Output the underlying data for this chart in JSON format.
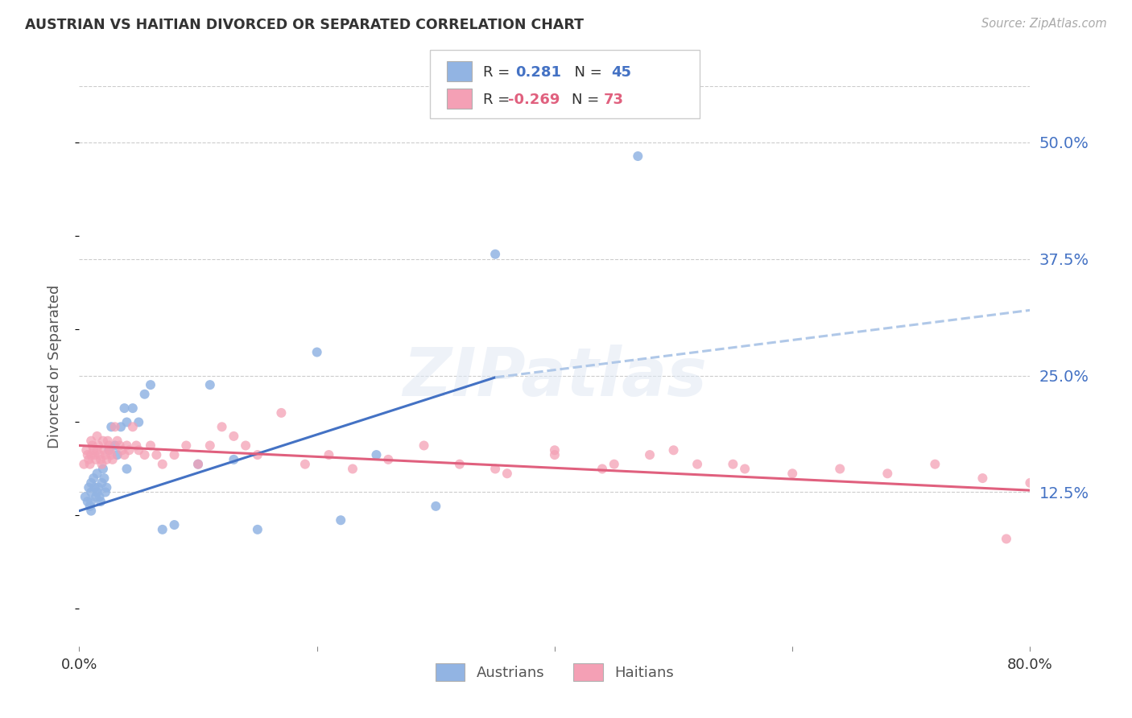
{
  "title": "AUSTRIAN VS HAITIAN DIVORCED OR SEPARATED CORRELATION CHART",
  "source": "Source: ZipAtlas.com",
  "ylabel": "Divorced or Separated",
  "xlim": [
    0.0,
    0.8
  ],
  "ylim": [
    -0.04,
    0.56
  ],
  "yticks": [
    0.125,
    0.25,
    0.375,
    0.5
  ],
  "ytick_labels": [
    "12.5%",
    "25.0%",
    "37.5%",
    "50.0%"
  ],
  "xticks": [
    0.0,
    0.2,
    0.4,
    0.6,
    0.8
  ],
  "legend_R_austrians": "0.281",
  "legend_N_austrians": "45",
  "legend_R_haitians": "-0.269",
  "legend_N_haitians": "73",
  "austrian_color": "#92b4e3",
  "haitian_color": "#f4a0b5",
  "trend_austrian_color": "#4472c4",
  "trend_haitian_color": "#e0607e",
  "trend_extend_color": "#b0c8e8",
  "background_color": "#ffffff",
  "watermark": "ZIPatlas",
  "title_color": "#333333",
  "source_color": "#aaaaaa",
  "axis_label_color": "#555555",
  "tick_color_right": "#4472c4",
  "tick_color_bottom": "#333333",
  "grid_color": "#cccccc",
  "legend_border_color": "#cccccc",
  "aus_x": [
    0.005,
    0.007,
    0.008,
    0.009,
    0.01,
    0.01,
    0.01,
    0.01,
    0.012,
    0.013,
    0.014,
    0.015,
    0.015,
    0.016,
    0.017,
    0.018,
    0.019,
    0.02,
    0.021,
    0.022,
    0.023,
    0.025,
    0.027,
    0.03,
    0.032,
    0.035,
    0.038,
    0.04,
    0.04,
    0.045,
    0.05,
    0.055,
    0.06,
    0.07,
    0.08,
    0.1,
    0.11,
    0.13,
    0.15,
    0.2,
    0.22,
    0.25,
    0.3,
    0.35,
    0.47
  ],
  "aus_y": [
    0.12,
    0.115,
    0.13,
    0.11,
    0.125,
    0.135,
    0.115,
    0.105,
    0.14,
    0.13,
    0.12,
    0.145,
    0.125,
    0.13,
    0.12,
    0.115,
    0.135,
    0.15,
    0.14,
    0.125,
    0.13,
    0.17,
    0.195,
    0.175,
    0.165,
    0.195,
    0.215,
    0.2,
    0.15,
    0.215,
    0.2,
    0.23,
    0.24,
    0.085,
    0.09,
    0.155,
    0.24,
    0.16,
    0.085,
    0.275,
    0.095,
    0.165,
    0.11,
    0.38,
    0.485
  ],
  "hai_x": [
    0.004,
    0.006,
    0.007,
    0.008,
    0.009,
    0.01,
    0.01,
    0.011,
    0.012,
    0.013,
    0.014,
    0.015,
    0.015,
    0.016,
    0.017,
    0.018,
    0.019,
    0.02,
    0.021,
    0.022,
    0.023,
    0.024,
    0.025,
    0.026,
    0.027,
    0.028,
    0.03,
    0.032,
    0.034,
    0.036,
    0.038,
    0.04,
    0.042,
    0.045,
    0.048,
    0.05,
    0.055,
    0.06,
    0.065,
    0.07,
    0.08,
    0.09,
    0.1,
    0.11,
    0.12,
    0.13,
    0.14,
    0.15,
    0.17,
    0.19,
    0.21,
    0.23,
    0.26,
    0.29,
    0.32,
    0.36,
    0.4,
    0.44,
    0.48,
    0.52,
    0.56,
    0.6,
    0.64,
    0.68,
    0.72,
    0.76,
    0.8,
    0.35,
    0.4,
    0.45,
    0.5,
    0.55,
    0.78
  ],
  "hai_y": [
    0.155,
    0.17,
    0.165,
    0.16,
    0.155,
    0.18,
    0.165,
    0.175,
    0.17,
    0.165,
    0.16,
    0.185,
    0.17,
    0.175,
    0.165,
    0.16,
    0.155,
    0.18,
    0.17,
    0.165,
    0.16,
    0.18,
    0.175,
    0.17,
    0.165,
    0.16,
    0.195,
    0.18,
    0.175,
    0.17,
    0.165,
    0.175,
    0.17,
    0.195,
    0.175,
    0.17,
    0.165,
    0.175,
    0.165,
    0.155,
    0.165,
    0.175,
    0.155,
    0.175,
    0.195,
    0.185,
    0.175,
    0.165,
    0.21,
    0.155,
    0.165,
    0.15,
    0.16,
    0.175,
    0.155,
    0.145,
    0.17,
    0.15,
    0.165,
    0.155,
    0.15,
    0.145,
    0.15,
    0.145,
    0.155,
    0.14,
    0.135,
    0.15,
    0.165,
    0.155,
    0.17,
    0.155,
    0.075
  ],
  "aus_trend_x0": 0.0,
  "aus_trend_y0": 0.105,
  "aus_trend_x1": 0.35,
  "aus_trend_y1": 0.248,
  "aus_trend_ext_x1": 0.8,
  "aus_trend_ext_y1": 0.32,
  "hai_trend_x0": 0.0,
  "hai_trend_y0": 0.175,
  "hai_trend_x1": 0.8,
  "hai_trend_y1": 0.127
}
